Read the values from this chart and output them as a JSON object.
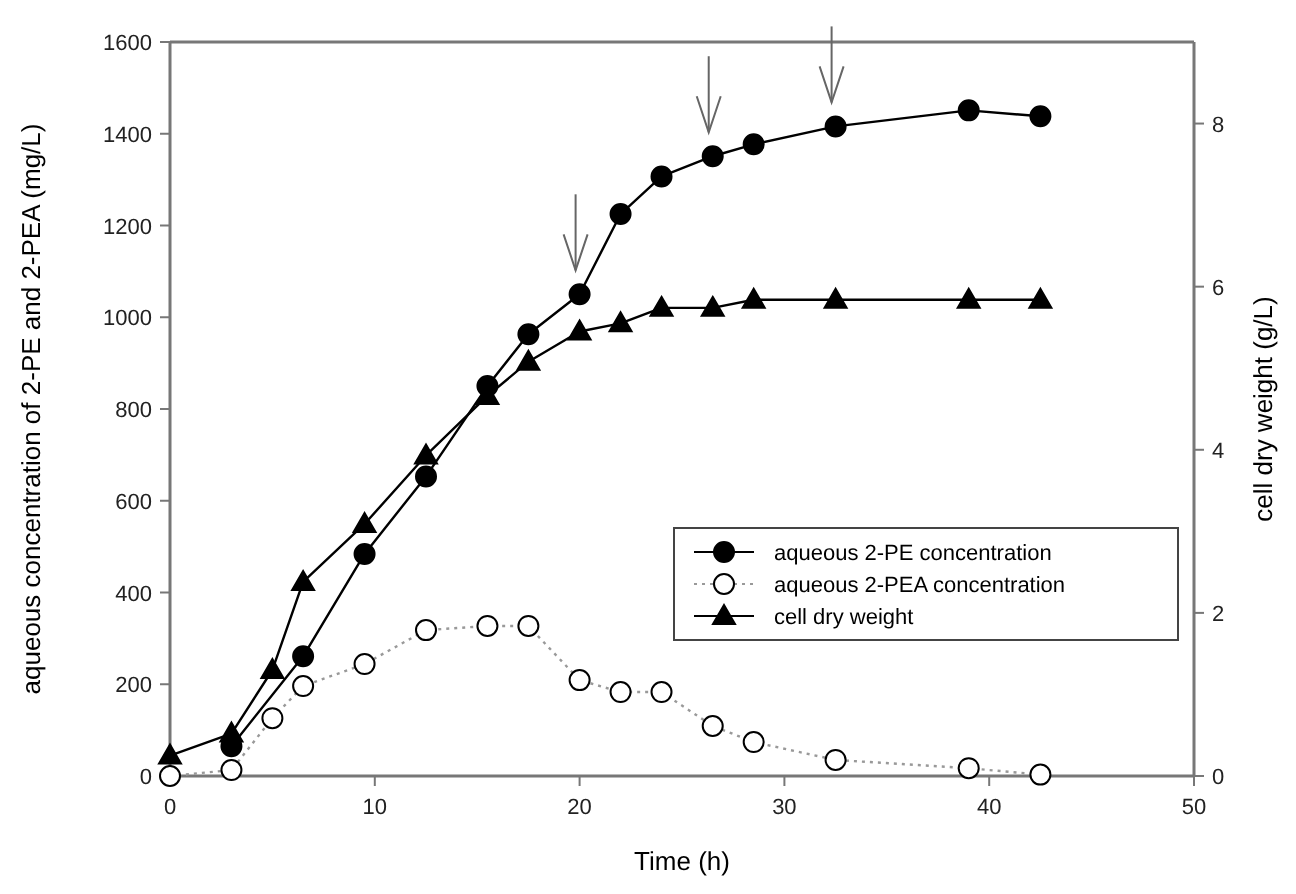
{
  "chart_data": {
    "type": "line",
    "xlabel": "Time (h)",
    "ylabel": "aqueous concentration of 2-PE and 2-PEA (mg/L)",
    "y2label": "cell dry weight (g/L)",
    "xlim": [
      0,
      50
    ],
    "xticks": [
      0,
      10,
      20,
      30,
      40,
      50
    ],
    "ylim": [
      0,
      1600
    ],
    "yticks": [
      0,
      200,
      400,
      600,
      800,
      1000,
      1200,
      1400,
      1600
    ],
    "y2lim": [
      0,
      9
    ],
    "y2ticks": [
      0,
      2,
      4,
      6,
      8
    ],
    "grid": false,
    "legend": "bottom right",
    "series": [
      {
        "name": "aqueous 2-PE concentration",
        "color": "#000000",
        "marker": "circle",
        "line_style": "solid",
        "x": [
          3,
          6.5,
          9.5,
          12.5,
          15.5,
          17.5,
          20,
          22,
          24,
          26.5,
          28.5,
          32.5,
          39,
          42.5
        ],
        "values": [
          65,
          261,
          484,
          653,
          850,
          963,
          1050,
          1225,
          1307,
          1351,
          1377,
          1416,
          1451,
          1438
        ]
      },
      {
        "name": "aqueous 2-PEA concentration",
        "color": "#000000",
        "marker": "circle",
        "line_style": "dotted",
        "x": [
          0,
          3,
          5,
          6.5,
          9.5,
          12.5,
          15.5,
          17.5,
          20,
          22,
          24,
          26.5,
          28.5,
          32.5,
          39,
          42.5
        ],
        "values": [
          0,
          13,
          126,
          196,
          244,
          318,
          327,
          327,
          209,
          183,
          183,
          109,
          74,
          35,
          17,
          3
        ]
      },
      {
        "name": "cell dry weight",
        "color": "#000000",
        "marker": "triangle",
        "line_style": "solid",
        "axis": "y2",
        "x": [
          0,
          3,
          5,
          6.5,
          9.5,
          12.5,
          15.5,
          17.5,
          20,
          22,
          24,
          26.5,
          28.5,
          32.5,
          39,
          42.5
        ],
        "values": [
          0.25,
          0.52,
          1.3,
          2.38,
          3.09,
          3.93,
          4.66,
          5.08,
          5.45,
          5.55,
          5.74,
          5.74,
          5.84,
          5.84,
          5.84,
          5.84
        ]
      }
    ]
  }
}
